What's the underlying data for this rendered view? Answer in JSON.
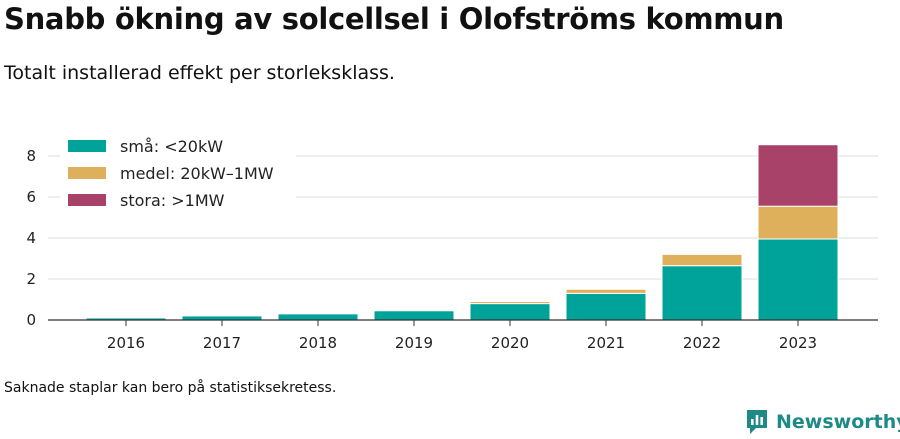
{
  "header": {
    "title": "Snabb ökning av solcellsel i Olofströms kommun",
    "subtitle": "Totalt installerad effekt per storleksklass."
  },
  "footer": {
    "note": "Saknade staplar kan bero på statistiksekretess.",
    "brand": "Newsworthy",
    "brand_icon": "newsworthy-logo-icon"
  },
  "chart_data": {
    "type": "bar",
    "stacked": true,
    "categories": [
      "2016",
      "2017",
      "2018",
      "2019",
      "2020",
      "2021",
      "2022",
      "2023"
    ],
    "series": [
      {
        "name": "små: <20kW",
        "color": "#00a39a",
        "values": [
          0.1,
          0.2,
          0.3,
          0.45,
          0.8,
          1.3,
          2.65,
          3.95
        ]
      },
      {
        "name": "medel: 20kW–1MW",
        "color": "#dfb05c",
        "values": [
          0,
          0,
          0,
          0,
          0.1,
          0.2,
          0.55,
          1.6
        ]
      },
      {
        "name": "stora: >1MW",
        "color": "#a84268",
        "values": [
          0,
          0,
          0,
          0,
          0,
          0,
          0,
          3.0
        ]
      }
    ],
    "ylim": [
      0,
      8.6
    ],
    "yticks": [
      0,
      2,
      4,
      6,
      8
    ],
    "grid": true,
    "legend_position": "top-left",
    "xlabel": "",
    "ylabel": ""
  }
}
